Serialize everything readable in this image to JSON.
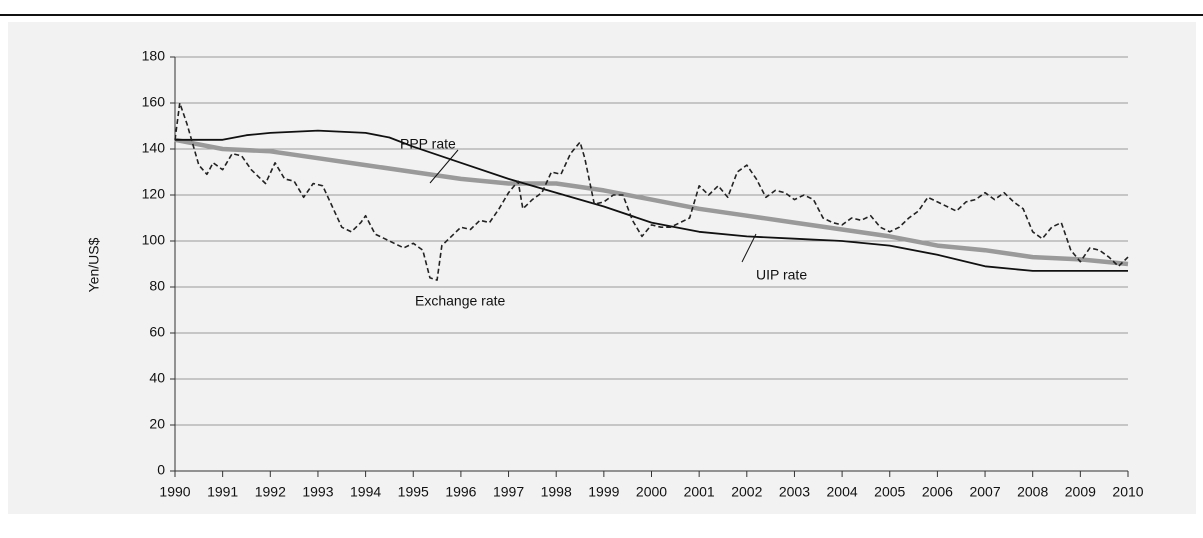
{
  "chart_data": {
    "type": "line",
    "ylabel": "Yen/US$",
    "xlim": [
      1990,
      2010
    ],
    "xticks": [
      1990,
      1991,
      1992,
      1993,
      1994,
      1995,
      1996,
      1997,
      1998,
      1999,
      2000,
      2001,
      2002,
      2003,
      2004,
      2005,
      2006,
      2007,
      2008,
      2009,
      2010
    ],
    "ylim": [
      0,
      180
    ],
    "yticks": [
      0,
      20,
      40,
      60,
      80,
      100,
      120,
      140,
      160,
      180
    ],
    "grid": true,
    "annotations": [
      "PPP rate",
      "Exchange rate",
      "UIP rate"
    ],
    "series": [
      {
        "name": "Exchange rate",
        "color": "#222222",
        "dashed": true,
        "linewidth": 1.6,
        "x": [
          1990,
          1990.1,
          1990.25,
          1990.5,
          1990.67,
          1990.8,
          1991,
          1991.2,
          1991.4,
          1991.6,
          1991.9,
          1992.1,
          1992.3,
          1992.5,
          1992.7,
          1992.9,
          1993.1,
          1993.3,
          1993.5,
          1993.7,
          1993.9,
          1994,
          1994.2,
          1994.4,
          1994.6,
          1994.8,
          1995,
          1995.2,
          1995.35,
          1995.5,
          1995.6,
          1995.8,
          1996,
          1996.2,
          1996.4,
          1996.6,
          1996.8,
          1997,
          1997.2,
          1997.3,
          1997.5,
          1997.7,
          1997.9,
          1998.1,
          1998.3,
          1998.5,
          1998.6,
          1998.8,
          1999,
          1999.2,
          1999.4,
          1999.6,
          1999.8,
          2000,
          2000.2,
          2000.4,
          2000.6,
          2000.8,
          2001,
          2001.2,
          2001.4,
          2001.6,
          2001.8,
          2002,
          2002.2,
          2002.4,
          2002.6,
          2002.8,
          2003,
          2003.2,
          2003.4,
          2003.6,
          2003.8,
          2004,
          2004.2,
          2004.4,
          2004.6,
          2004.8,
          2005,
          2005.2,
          2005.4,
          2005.6,
          2005.8,
          2006,
          2006.2,
          2006.4,
          2006.6,
          2006.8,
          2007,
          2007.2,
          2007.4,
          2007.6,
          2007.8,
          2008,
          2008.2,
          2008.4,
          2008.6,
          2008.8,
          2009,
          2009.2,
          2009.4,
          2009.6,
          2009.8,
          2010
        ],
        "values": [
          144,
          160,
          151,
          133,
          129,
          134,
          131,
          138,
          137,
          131,
          125,
          134,
          127,
          126,
          119,
          125,
          124,
          115,
          106,
          104,
          108,
          111,
          103,
          101,
          99,
          97,
          99,
          96,
          84,
          83,
          98,
          102,
          106,
          105,
          109,
          108,
          114,
          121,
          126,
          114,
          118,
          121,
          130,
          129,
          138,
          143,
          136,
          116,
          117,
          120,
          120,
          109,
          102,
          107,
          106,
          106,
          108,
          110,
          124,
          120,
          124,
          119,
          130,
          133,
          127,
          119,
          122,
          121,
          118,
          120,
          118,
          110,
          108,
          107,
          110,
          109,
          111,
          106,
          104,
          106,
          110,
          113,
          119,
          117,
          115,
          113,
          117,
          118,
          121,
          118,
          121,
          117,
          114,
          104,
          101,
          106,
          108,
          96,
          91,
          97,
          96,
          93,
          89,
          93
        ]
      },
      {
        "name": "PPP rate",
        "color": "#9a9a9a",
        "dashed": false,
        "linewidth": 4.5,
        "x": [
          1990,
          1991,
          1992,
          1993,
          1994,
          1995,
          1996,
          1997,
          1998,
          1999,
          2000,
          2001,
          2002,
          2003,
          2004,
          2005,
          2006,
          2007,
          2008,
          2009,
          2010
        ],
        "values": [
          144,
          140,
          139,
          136,
          133,
          130,
          127,
          125,
          125,
          122,
          118,
          114,
          111,
          108,
          105,
          102,
          98,
          96,
          93,
          92,
          90
        ]
      },
      {
        "name": "UIP rate",
        "color": "#111111",
        "dashed": false,
        "linewidth": 1.8,
        "x": [
          1990,
          1991,
          1991.5,
          1992,
          1993,
          1994,
          1994.5,
          1995,
          1996,
          1997,
          1998,
          1999,
          2000,
          2001,
          2002,
          2003,
          2004,
          2005,
          2006,
          2007,
          2008,
          2009,
          2010
        ],
        "values": [
          144,
          144,
          146,
          147,
          148,
          147,
          145,
          141,
          134,
          127,
          121,
          115,
          108,
          104,
          102,
          101,
          100,
          98,
          94,
          89,
          87,
          87,
          87
        ]
      }
    ]
  }
}
